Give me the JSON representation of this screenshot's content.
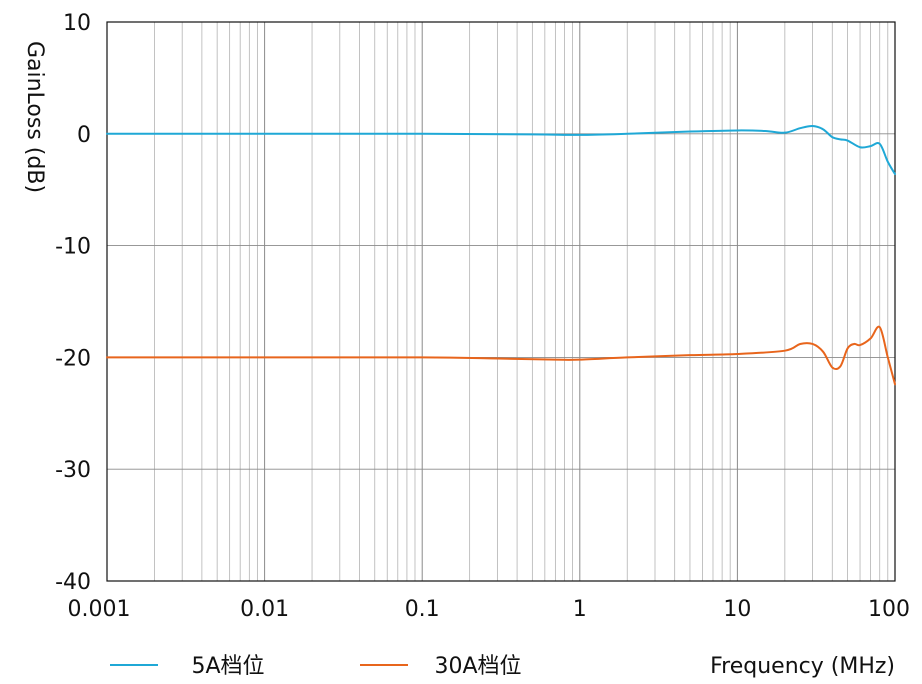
{
  "chart_data": {
    "type": "line",
    "title": "",
    "xlabel": "Frequency (MHz)",
    "ylabel": "GainLoss (dB)",
    "x_scale": "log",
    "xlim": [
      0.001,
      100
    ],
    "ylim": [
      -40,
      10
    ],
    "x_ticks": [
      0.001,
      0.01,
      0.1,
      1,
      10,
      100
    ],
    "x_tick_labels": [
      "0.001",
      "0.01",
      "0.1",
      "1",
      "10",
      "100"
    ],
    "y_ticks": [
      10,
      0,
      -10,
      -20,
      -30,
      -40
    ],
    "y_tick_labels": [
      "10",
      "0",
      "-10",
      "-20",
      "-30",
      "-40"
    ],
    "grid": true,
    "legend": "bottom",
    "series": [
      {
        "name": "5A档位",
        "color": "#1fa8d6",
        "x": [
          0.001,
          0.01,
          0.1,
          0.5,
          1,
          2,
          5,
          10,
          15,
          20,
          25,
          30,
          35,
          40,
          45,
          50,
          60,
          70,
          80,
          90,
          100
        ],
        "y": [
          0,
          0,
          0,
          -0.05,
          -0.1,
          0,
          0.2,
          0.3,
          0.25,
          0.1,
          0.5,
          0.7,
          0.4,
          -0.3,
          -0.5,
          -0.6,
          -1.2,
          -1.1,
          -0.9,
          -2.5,
          -3.6
        ]
      },
      {
        "name": "30A档位",
        "color": "#e8651c",
        "x": [
          0.001,
          0.01,
          0.1,
          0.3,
          0.7,
          1,
          2,
          5,
          10,
          20,
          25,
          30,
          35,
          40,
          45,
          50,
          55,
          60,
          70,
          80,
          90,
          100
        ],
        "y": [
          -20,
          -20,
          -20,
          -20.1,
          -20.2,
          -20.2,
          -20,
          -19.8,
          -19.7,
          -19.4,
          -18.8,
          -18.8,
          -19.5,
          -20.9,
          -20.8,
          -19.2,
          -18.8,
          -18.9,
          -18.3,
          -17.3,
          -20,
          -22.4
        ]
      }
    ]
  }
}
